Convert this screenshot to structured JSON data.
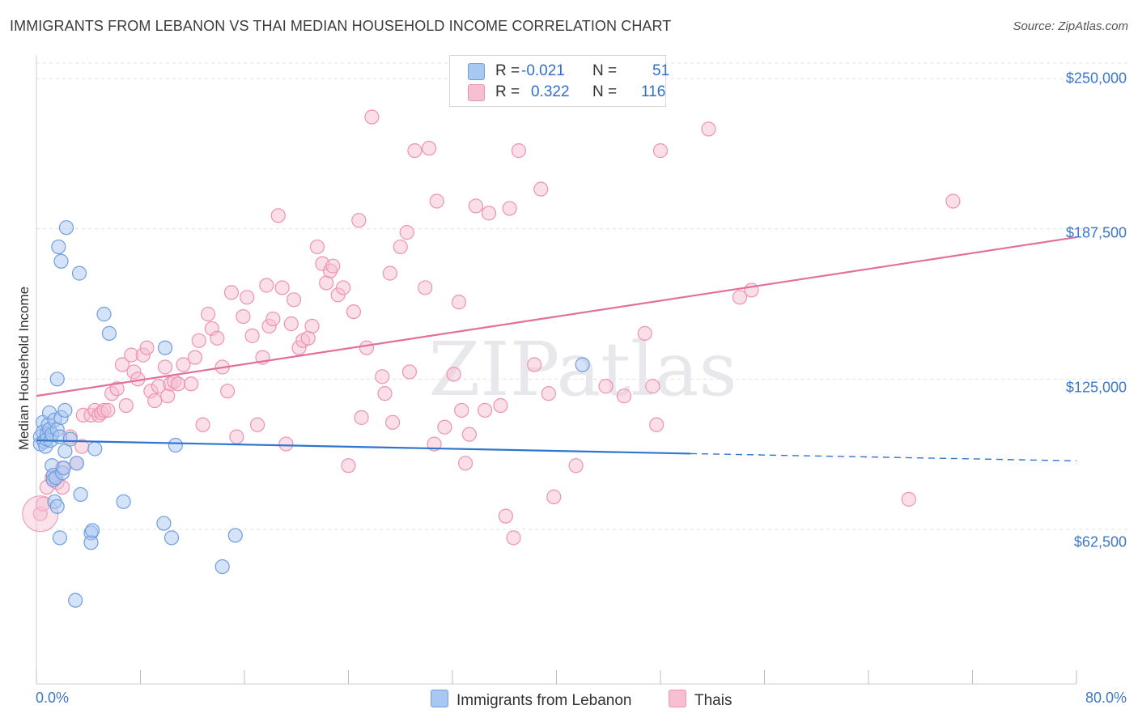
{
  "title": "IMMIGRANTS FROM LEBANON VS THAI MEDIAN HOUSEHOLD INCOME CORRELATION CHART",
  "source": "Source: ZipAtlas.com",
  "watermark": "ZIPatlas",
  "colors": {
    "blue_fill": "#a9c8f1",
    "blue_stroke": "#6f9ee0",
    "blue_line": "#2f75d0",
    "pink_fill": "#f6c0d2",
    "pink_stroke": "#ee92b2",
    "pink_line": "#e2709a",
    "tick_text": "#3b78c9",
    "grid": "#e0e0e0"
  },
  "legend_top": {
    "rows": [
      {
        "r_label": "R =",
        "r_value": "-0.021",
        "n_label": "N =",
        "n_value": "51"
      },
      {
        "r_label": "R =",
        "r_value": "0.322",
        "n_label": "N =",
        "n_value": "116"
      }
    ]
  },
  "legend_bottom": [
    "Immigrants from Lebanon",
    "Thais"
  ],
  "chart_data": {
    "type": "scatter",
    "title": "IMMIGRANTS FROM LEBANON VS THAI MEDIAN HOUSEHOLD INCOME CORRELATION CHART",
    "xlabel": "",
    "ylabel": "Median Household Income",
    "xlim": [
      0,
      80
    ],
    "ylim": [
      8000,
      260000
    ],
    "x_tick_labels": [
      "0.0%",
      "80.0%"
    ],
    "y_ticks": [
      62500,
      125000,
      187500,
      250000
    ],
    "y_tick_labels": [
      "$62,500",
      "$125,000",
      "$187,500",
      "$250,000"
    ],
    "grid": true,
    "series": [
      {
        "name": "Immigrants from Lebanon",
        "r": -0.021,
        "n": 51,
        "trend": {
          "solid": [
            [
              0,
              99500
            ],
            [
              50.3,
              94000
            ]
          ],
          "dashed": [
            [
              50.3,
              94000
            ],
            [
              80,
              91000
            ]
          ]
        },
        "points": [
          [
            0.3,
            101000
          ],
          [
            0.3,
            98000
          ],
          [
            0.5,
            107000
          ],
          [
            0.5,
            103000
          ],
          [
            0.6,
            99000
          ],
          [
            0.7,
            97000
          ],
          [
            0.8,
            102000
          ],
          [
            0.8,
            100000
          ],
          [
            0.9,
            106000
          ],
          [
            1.0,
            111000
          ],
          [
            1.0,
            104000
          ],
          [
            1.1,
            99500
          ],
          [
            1.2,
            102000
          ],
          [
            1.2,
            89000
          ],
          [
            1.3,
            85000
          ],
          [
            1.3,
            83000
          ],
          [
            1.4,
            74000
          ],
          [
            1.4,
            108000
          ],
          [
            1.5,
            84000
          ],
          [
            1.6,
            125000
          ],
          [
            1.6,
            72000
          ],
          [
            1.6,
            104000
          ],
          [
            1.7,
            180000
          ],
          [
            1.8,
            59000
          ],
          [
            1.8,
            101000
          ],
          [
            1.9,
            174000
          ],
          [
            1.9,
            109000
          ],
          [
            2.0,
            86000
          ],
          [
            2.1,
            88000
          ],
          [
            2.2,
            95000
          ],
          [
            2.2,
            112000
          ],
          [
            2.3,
            188000
          ],
          [
            2.6,
            100000
          ],
          [
            3.0,
            33000
          ],
          [
            3.1,
            90000
          ],
          [
            3.3,
            169000
          ],
          [
            3.4,
            77000
          ],
          [
            4.2,
            61000
          ],
          [
            4.2,
            57000
          ],
          [
            4.3,
            62000
          ],
          [
            4.5,
            96000
          ],
          [
            5.2,
            152000
          ],
          [
            5.6,
            144000
          ],
          [
            6.7,
            74000
          ],
          [
            9.8,
            65000
          ],
          [
            9.9,
            138000
          ],
          [
            10.4,
            59000
          ],
          [
            10.7,
            97500
          ],
          [
            14.3,
            47000
          ],
          [
            15.3,
            60000
          ],
          [
            42.0,
            131000
          ]
        ]
      },
      {
        "name": "Thais",
        "r": 0.322,
        "n": 116,
        "trend": {
          "solid": [
            [
              0,
              118000
            ],
            [
              80,
              184000
            ]
          ]
        },
        "points": [
          [
            0.3,
            69000
          ],
          [
            0.5,
            73000
          ],
          [
            0.8,
            80000
          ],
          [
            1.2,
            84000
          ],
          [
            1.6,
            82000
          ],
          [
            2.0,
            88000
          ],
          [
            2.0,
            80000
          ],
          [
            2.6,
            101000
          ],
          [
            3.1,
            90000
          ],
          [
            3.5,
            97000
          ],
          [
            3.6,
            110000
          ],
          [
            4.2,
            110000
          ],
          [
            4.5,
            112000
          ],
          [
            4.8,
            110000
          ],
          [
            5.0,
            111000
          ],
          [
            5.2,
            112000
          ],
          [
            5.5,
            112000
          ],
          [
            5.8,
            119000
          ],
          [
            6.2,
            121000
          ],
          [
            6.6,
            131000
          ],
          [
            6.9,
            114000
          ],
          [
            7.3,
            135000
          ],
          [
            7.5,
            128000
          ],
          [
            7.8,
            125000
          ],
          [
            8.2,
            135000
          ],
          [
            8.5,
            138000
          ],
          [
            8.8,
            120000
          ],
          [
            9.1,
            116000
          ],
          [
            9.4,
            122000
          ],
          [
            9.9,
            130000
          ],
          [
            10.1,
            118000
          ],
          [
            10.3,
            123000
          ],
          [
            10.6,
            124000
          ],
          [
            10.9,
            123000
          ],
          [
            11.3,
            131000
          ],
          [
            11.9,
            123000
          ],
          [
            12.2,
            134000
          ],
          [
            12.5,
            141000
          ],
          [
            12.8,
            106000
          ],
          [
            13.2,
            152000
          ],
          [
            13.5,
            146000
          ],
          [
            13.9,
            142000
          ],
          [
            14.3,
            130000
          ],
          [
            14.7,
            120000
          ],
          [
            15.0,
            161000
          ],
          [
            15.4,
            101000
          ],
          [
            15.9,
            151000
          ],
          [
            16.2,
            159000
          ],
          [
            16.6,
            143000
          ],
          [
            17.0,
            106000
          ],
          [
            17.4,
            134000
          ],
          [
            17.7,
            164000
          ],
          [
            17.9,
            147000
          ],
          [
            18.2,
            150000
          ],
          [
            18.6,
            193000
          ],
          [
            18.9,
            163000
          ],
          [
            19.2,
            98000
          ],
          [
            19.6,
            148000
          ],
          [
            19.8,
            158000
          ],
          [
            20.2,
            138000
          ],
          [
            20.5,
            141000
          ],
          [
            20.9,
            142000
          ],
          [
            21.2,
            147000
          ],
          [
            21.6,
            180000
          ],
          [
            22.0,
            173000
          ],
          [
            22.3,
            165000
          ],
          [
            22.6,
            170000
          ],
          [
            22.8,
            172000
          ],
          [
            23.2,
            160000
          ],
          [
            23.6,
            163000
          ],
          [
            24.0,
            89000
          ],
          [
            24.4,
            153000
          ],
          [
            24.8,
            191000
          ],
          [
            25.0,
            109000
          ],
          [
            25.4,
            138000
          ],
          [
            25.8,
            234000
          ],
          [
            26.6,
            126000
          ],
          [
            26.8,
            119000
          ],
          [
            27.2,
            169000
          ],
          [
            27.4,
            107000
          ],
          [
            28.0,
            180000
          ],
          [
            28.5,
            186000
          ],
          [
            28.7,
            128000
          ],
          [
            29.1,
            220000
          ],
          [
            29.9,
            163000
          ],
          [
            30.2,
            221000
          ],
          [
            30.6,
            98000
          ],
          [
            30.8,
            199000
          ],
          [
            31.4,
            105000
          ],
          [
            32.1,
            127000
          ],
          [
            32.5,
            157000
          ],
          [
            32.7,
            112000
          ],
          [
            33.0,
            90000
          ],
          [
            33.3,
            102000
          ],
          [
            33.8,
            197000
          ],
          [
            34.5,
            112000
          ],
          [
            34.8,
            194000
          ],
          [
            35.7,
            114000
          ],
          [
            36.1,
            68000
          ],
          [
            36.4,
            196000
          ],
          [
            36.7,
            59000
          ],
          [
            37.1,
            220000
          ],
          [
            38.3,
            131000
          ],
          [
            38.8,
            204000
          ],
          [
            39.4,
            119000
          ],
          [
            39.8,
            76000
          ],
          [
            41.5,
            89000
          ],
          [
            43.8,
            122000
          ],
          [
            45.2,
            118000
          ],
          [
            46.8,
            144000
          ],
          [
            47.4,
            122000
          ],
          [
            47.7,
            106000
          ],
          [
            48.0,
            220000
          ],
          [
            51.7,
            229000
          ],
          [
            54.1,
            159000
          ],
          [
            55.0,
            162000
          ],
          [
            67.1,
            75000
          ],
          [
            70.5,
            199000
          ]
        ]
      }
    ]
  }
}
